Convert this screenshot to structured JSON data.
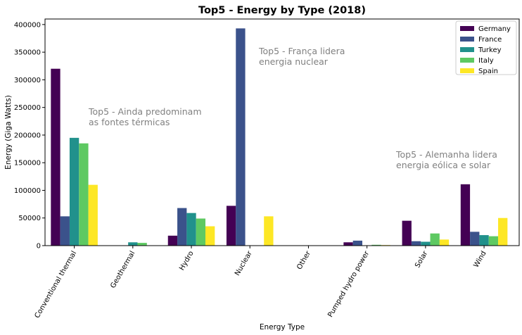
{
  "chart_data": {
    "type": "bar",
    "title": "Top5 - Energy by Type (2018)",
    "xlabel": "Energy Type",
    "ylabel": "Energy (Giga Watts)",
    "ylim": [
      0,
      410000
    ],
    "yticks": [
      0,
      50000,
      100000,
      150000,
      200000,
      250000,
      300000,
      350000,
      400000
    ],
    "ytick_labels": [
      "0",
      "50000",
      "100000",
      "150000",
      "200000",
      "250000",
      "300000",
      "350000",
      "400000"
    ],
    "categories": [
      "Conventional thermal",
      "Geothermal",
      "Hydro",
      "Nuclear",
      "Other",
      "Pumped hydro power",
      "Solar",
      "Wind"
    ],
    "grid": false,
    "legend_position": "top-right",
    "series": [
      {
        "name": "Germany",
        "color": "#440154",
        "values": [
          320000,
          0,
          18000,
          72000,
          0,
          6000,
          45000,
          111000
        ]
      },
      {
        "name": "France",
        "color": "#3b528b",
        "values": [
          53000,
          0,
          68000,
          393000,
          0,
          9000,
          8000,
          25000
        ]
      },
      {
        "name": "Turkey",
        "color": "#21918c",
        "values": [
          195000,
          6000,
          59000,
          0,
          0,
          500,
          7000,
          19000
        ]
      },
      {
        "name": "Italy",
        "color": "#5ec962",
        "values": [
          185000,
          5000,
          49000,
          0,
          0,
          1500,
          22000,
          17000
        ]
      },
      {
        "name": "Spain",
        "color": "#fde725",
        "values": [
          110000,
          0,
          35000,
          53000,
          0,
          1000,
          11000,
          50000
        ]
      }
    ],
    "annotations": [
      {
        "id": "thermal",
        "lines": [
          "Top5 - Ainda predominam",
          "as fontes térmicas"
        ]
      },
      {
        "id": "nuclear",
        "lines": [
          "Top5 - França lidera",
          "energia nuclear"
        ]
      },
      {
        "id": "wind",
        "lines": [
          "Top5 - Alemanha lidera",
          "energia eólica e solar"
        ]
      }
    ]
  }
}
